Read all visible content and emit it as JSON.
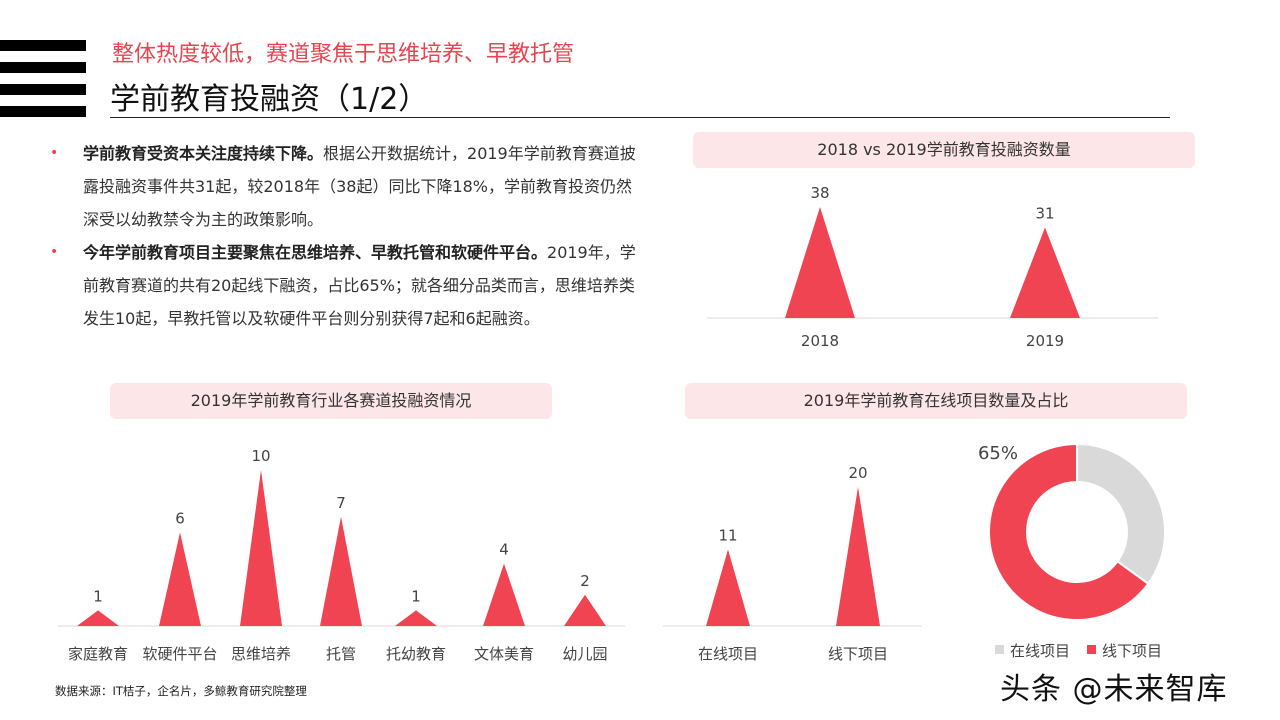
{
  "header": {
    "subtitle": "整体热度较低，赛道聚焦于思维培养、早教托管",
    "title": "学前教育投融资（1/2）"
  },
  "bullets": [
    {
      "bold": "学前教育受资本关注度持续下降。",
      "text": "根据公开数据统计，2019年学前教育赛道披露投融资事件共31起，较2018年（38起）同比下降18%，学前教育投资仍然深受以幼教禁令为主的政策影响。"
    },
    {
      "bold": "今年学前教育项目主要聚焦在思维培养、早教托管和软硬件平台。",
      "text": "2019年，学前教育赛道的共有20起线下融资，占比65%；就各细分品类而言，思维培养类发生10起，早教托管以及软硬件平台则分别获得7起和6起融资。"
    }
  ],
  "colors": {
    "accent": "#f04452",
    "gray": "#d9d9d9",
    "panel": "#fde6e7"
  },
  "chart_data": [
    {
      "type": "bar",
      "shape": "triangle",
      "title": "2018 vs 2019学前教育投融资数量",
      "categories": [
        "2018",
        "2019"
      ],
      "values": [
        38,
        31
      ]
    },
    {
      "type": "bar",
      "shape": "triangle",
      "title": "2019年学前教育行业各赛道投融资情况",
      "categories": [
        "家庭教育",
        "软硬件平台",
        "思维培养",
        "托管",
        "托幼教育",
        "文体美育",
        "幼儿园"
      ],
      "values": [
        1,
        6,
        10,
        7,
        1,
        4,
        2
      ]
    },
    {
      "type": "bar",
      "shape": "triangle",
      "title": "2019年学前教育在线项目数量及占比",
      "categories": [
        "在线项目",
        "线下项目"
      ],
      "values": [
        11,
        20
      ]
    },
    {
      "type": "pie",
      "donut": true,
      "categories": [
        "在线项目",
        "线下项目"
      ],
      "values": [
        35,
        65
      ],
      "data_label": "65%",
      "legend": "bottom"
    }
  ],
  "footer": {
    "source": "数据来源：IT桔子，企名片，多鲸教育研究院整理",
    "watermark": "头条 @未来智库"
  }
}
